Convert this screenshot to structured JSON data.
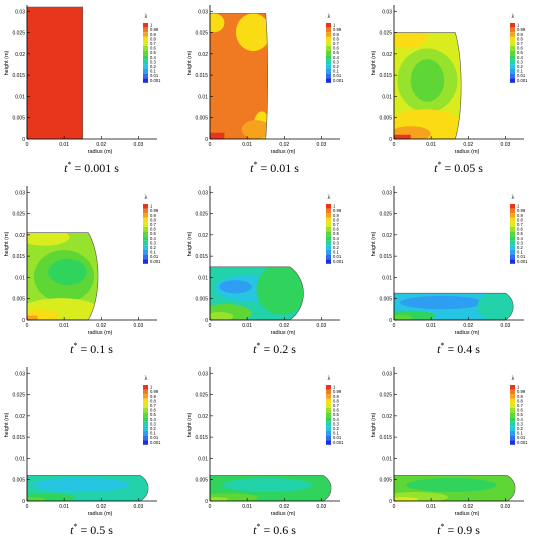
{
  "colors": {
    "c1": "#e8361c",
    "c099": "#f07a22",
    "c09": "#f6a21c",
    "c08": "#fadc14",
    "c07": "#d8ec1e",
    "c06": "#96e22c",
    "c05": "#5ed636",
    "c04": "#30d45c",
    "c03": "#22d2a8",
    "c02": "#26c6e2",
    "c01": "#2e9ef2",
    "c001": "#2e6ef0",
    "c0001": "#1a2ee4",
    "axis": "#000000"
  },
  "chart_data": [
    {
      "type": "heatmap",
      "caption_pre": "t",
      "caption_sup": "*",
      "caption_post": " = 0.001 s",
      "xlabel": "radius (m)",
      "ylabel": "height (m)",
      "xlim": [
        0,
        0.035
      ],
      "ylim": [
        0,
        0.031
      ],
      "xticks": [
        "0",
        "0.01",
        "0.02",
        "0.03"
      ],
      "yticks": [
        "0",
        "0.005",
        "0.01",
        "0.015",
        "0.02",
        "0.025",
        "0.03"
      ],
      "legend_title": "λ",
      "legend_levels": [
        "1",
        "0.99",
        "0.9",
        "0.8",
        "0.7",
        "0.6",
        "0.5",
        "0.4",
        "0.3",
        "0.2",
        "0.1",
        "0.01",
        "0.001"
      ],
      "droplet": {
        "radius": 0.015,
        "height": 0.031,
        "bulge": 0
      },
      "regions": []
    },
    {
      "type": "heatmap",
      "caption_pre": "t",
      "caption_sup": "*",
      "caption_post": " = 0.01 s",
      "xlabel": "radius (m)",
      "ylabel": "height (m)",
      "xlim": [
        0,
        0.035
      ],
      "ylim": [
        0,
        0.031
      ],
      "xticks": [
        "0",
        "0.01",
        "0.02",
        "0.03"
      ],
      "yticks": [
        "0",
        "0.005",
        "0.01",
        "0.015",
        "0.02",
        "0.025",
        "0.03"
      ],
      "legend_title": "λ",
      "legend_levels": [
        "1",
        "0.99",
        "0.9",
        "0.8",
        "0.7",
        "0.6",
        "0.5",
        "0.4",
        "0.3",
        "0.2",
        "0.1",
        "0.01",
        "0.001"
      ],
      "droplet": {
        "radius": 0.015,
        "height": 0.0295,
        "bulge": 0.0005
      },
      "regions": []
    },
    {
      "type": "heatmap",
      "caption_pre": "t",
      "caption_sup": "*",
      "caption_post": " = 0.05 s",
      "xlabel": "radius (m)",
      "ylabel": "height (m)",
      "xlim": [
        0,
        0.035
      ],
      "ylim": [
        0,
        0.031
      ],
      "xticks": [
        "0",
        "0.01",
        "0.02",
        "0.03"
      ],
      "yticks": [
        "0",
        "0.005",
        "0.01",
        "0.015",
        "0.02",
        "0.025",
        "0.03"
      ],
      "legend_title": "λ",
      "legend_levels": [
        "1",
        "0.99",
        "0.9",
        "0.8",
        "0.7",
        "0.6",
        "0.5",
        "0.4",
        "0.3",
        "0.2",
        "0.1",
        "0.01",
        "0.001"
      ],
      "droplet": {
        "radius": 0.0165,
        "height": 0.025,
        "bulge": 0.0015
      },
      "regions": []
    },
    {
      "type": "heatmap",
      "caption_pre": "t",
      "caption_sup": "*",
      "caption_post": " = 0.1 s",
      "xlabel": "radius (m)",
      "ylabel": "height (m)",
      "xlim": [
        0,
        0.035
      ],
      "ylim": [
        0,
        0.031
      ],
      "xticks": [
        "0",
        "0.01",
        "0.02",
        "0.03"
      ],
      "yticks": [
        "0",
        "0.005",
        "0.01",
        "0.015",
        "0.02",
        "0.025",
        "0.03"
      ],
      "legend_title": "λ",
      "legend_levels": [
        "1",
        "0.99",
        "0.9",
        "0.8",
        "0.7",
        "0.6",
        "0.5",
        "0.4",
        "0.3",
        "0.2",
        "0.1",
        "0.01",
        "0.001"
      ],
      "droplet": {
        "radius": 0.0165,
        "height": 0.0205,
        "bulge": 0.0025
      },
      "regions": []
    },
    {
      "type": "heatmap",
      "caption_pre": "t",
      "caption_sup": "*",
      "caption_post": " = 0.2 s",
      "xlabel": "radius (m)",
      "ylabel": "height (m)",
      "xlim": [
        0,
        0.035
      ],
      "ylim": [
        0,
        0.031
      ],
      "xticks": [
        "0",
        "0.01",
        "0.02",
        "0.03"
      ],
      "yticks": [
        "0",
        "0.005",
        "0.01",
        "0.015",
        "0.02",
        "0.025",
        "0.03"
      ],
      "legend_title": "λ",
      "legend_levels": [
        "1",
        "0.99",
        "0.9",
        "0.8",
        "0.7",
        "0.6",
        "0.5",
        "0.4",
        "0.3",
        "0.2",
        "0.1",
        "0.01",
        "0.001"
      ],
      "droplet": {
        "radius": 0.0215,
        "height": 0.0125,
        "bulge": 0.0035
      },
      "regions": []
    },
    {
      "type": "heatmap",
      "caption_pre": "t",
      "caption_sup": "*",
      "caption_post": " = 0.4 s",
      "xlabel": "radius (m)",
      "ylabel": "height (m)",
      "xlim": [
        0,
        0.035
      ],
      "ylim": [
        0,
        0.031
      ],
      "xticks": [
        "0",
        "0.01",
        "0.02",
        "0.03"
      ],
      "yticks": [
        "0",
        "0.005",
        "0.01",
        "0.015",
        "0.02",
        "0.025",
        "0.03"
      ],
      "legend_title": "λ",
      "legend_levels": [
        "1",
        "0.99",
        "0.9",
        "0.8",
        "0.7",
        "0.6",
        "0.5",
        "0.4",
        "0.3",
        "0.2",
        "0.1",
        "0.01",
        "0.001"
      ],
      "droplet": {
        "radius": 0.03,
        "height": 0.0063,
        "bulge": 0.002
      },
      "regions": []
    },
    {
      "type": "heatmap",
      "caption_pre": "t",
      "caption_sup": "*",
      "caption_post": " = 0.5 s",
      "xlabel": "radius (m)",
      "ylabel": "height (m)",
      "xlim": [
        0,
        0.035
      ],
      "ylim": [
        0,
        0.031
      ],
      "xticks": [
        "0",
        "0.01",
        "0.02",
        "0.03"
      ],
      "yticks": [
        "0",
        "0.005",
        "0.01",
        "0.015",
        "0.02",
        "0.025",
        "0.03"
      ],
      "legend_title": "λ",
      "legend_levels": [
        "1",
        "0.99",
        "0.9",
        "0.8",
        "0.7",
        "0.6",
        "0.5",
        "0.4",
        "0.3",
        "0.2",
        "0.1",
        "0.01",
        "0.001"
      ],
      "droplet": {
        "radius": 0.0305,
        "height": 0.006,
        "bulge": 0.002
      },
      "regions": []
    },
    {
      "type": "heatmap",
      "caption_pre": "t",
      "caption_sup": "*",
      "caption_post": " = 0.6 s",
      "xlabel": "radius (m)",
      "ylabel": "height (m)",
      "xlim": [
        0,
        0.035
      ],
      "ylim": [
        0,
        0.031
      ],
      "xticks": [
        "0",
        "0.01",
        "0.02",
        "0.03"
      ],
      "yticks": [
        "0",
        "0.005",
        "0.01",
        "0.015",
        "0.02",
        "0.025",
        "0.03"
      ],
      "legend_title": "λ",
      "legend_levels": [
        "1",
        "0.99",
        "0.9",
        "0.8",
        "0.7",
        "0.6",
        "0.5",
        "0.4",
        "0.3",
        "0.2",
        "0.1",
        "0.01",
        "0.001"
      ],
      "droplet": {
        "radius": 0.0305,
        "height": 0.006,
        "bulge": 0.002
      },
      "regions": []
    },
    {
      "type": "heatmap",
      "caption_pre": "t",
      "caption_sup": "*",
      "caption_post": " = 0.9 s",
      "xlabel": "radius (m)",
      "ylabel": "height (m)",
      "xlim": [
        0,
        0.035
      ],
      "ylim": [
        0,
        0.031
      ],
      "xticks": [
        "0",
        "0.01",
        "0.02",
        "0.03"
      ],
      "yticks": [
        "0",
        "0.005",
        "0.01",
        "0.015",
        "0.02",
        "0.025",
        "0.03"
      ],
      "legend_title": "λ",
      "legend_levels": [
        "1",
        "0.99",
        "0.9",
        "0.8",
        "0.7",
        "0.6",
        "0.5",
        "0.4",
        "0.3",
        "0.2",
        "0.1",
        "0.01",
        "0.001"
      ],
      "droplet": {
        "radius": 0.0305,
        "height": 0.006,
        "bulge": 0.002
      },
      "regions": []
    }
  ]
}
